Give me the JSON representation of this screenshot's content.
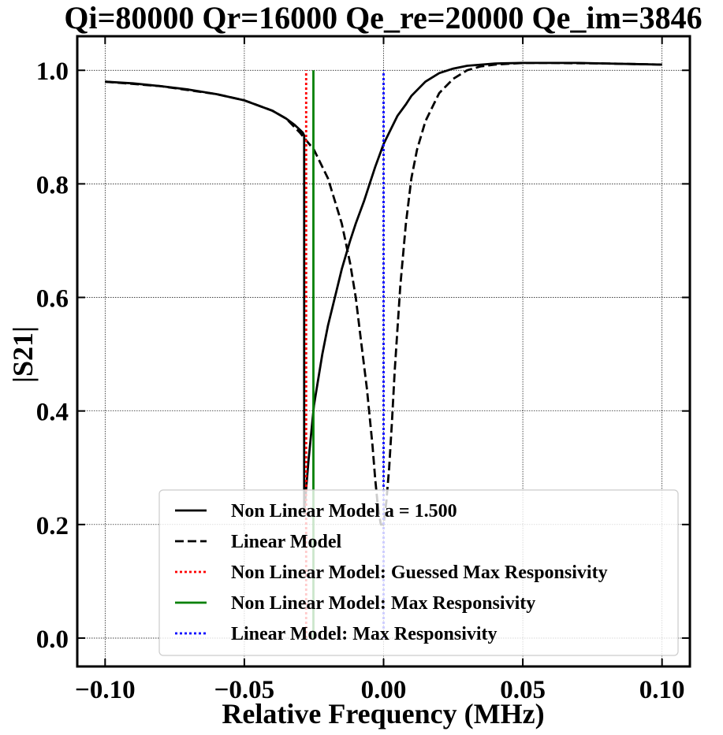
{
  "chart_data": {
    "type": "line",
    "title": "Qi=80000 Qr=16000 Qe_re=20000 Qe_im=3846",
    "xlabel": "Relative Frequency (MHz)",
    "ylabel": "|S21|",
    "xlim": [
      -0.11,
      0.11
    ],
    "ylim": [
      -0.05,
      1.06
    ],
    "xticks": [
      -0.1,
      -0.05,
      0.0,
      0.05,
      0.1
    ],
    "xtick_labels": [
      "−0.10",
      "−0.05",
      "0.00",
      "0.05",
      "0.10"
    ],
    "yticks": [
      0.0,
      0.2,
      0.4,
      0.6,
      0.8,
      1.0
    ],
    "ytick_labels": [
      "0.0",
      "0.2",
      "0.4",
      "0.6",
      "0.8",
      "1.0"
    ],
    "grid": true,
    "legend_position": "lower-right",
    "series": [
      {
        "name": "Non Linear Model a = 1.500",
        "color": "#000000",
        "style": "solid",
        "x": [
          -0.1,
          -0.09,
          -0.08,
          -0.07,
          -0.06,
          -0.05,
          -0.04,
          -0.035,
          -0.032,
          -0.03,
          -0.029,
          -0.0285,
          -0.0285,
          -0.027,
          -0.025,
          -0.022,
          -0.02,
          -0.017,
          -0.015,
          -0.012,
          -0.01,
          -0.007,
          -0.005,
          -0.003,
          0.0,
          0.003,
          0.005,
          0.008,
          0.01,
          0.015,
          0.02,
          0.025,
          0.03,
          0.04,
          0.05,
          0.06,
          0.07,
          0.08,
          0.09,
          0.1
        ],
        "y": [
          0.98,
          0.977,
          0.972,
          0.966,
          0.958,
          0.947,
          0.929,
          0.915,
          0.904,
          0.895,
          0.89,
          0.885,
          0.22,
          0.31,
          0.41,
          0.5,
          0.55,
          0.61,
          0.65,
          0.7,
          0.73,
          0.77,
          0.8,
          0.83,
          0.87,
          0.9,
          0.92,
          0.94,
          0.955,
          0.98,
          0.995,
          1.003,
          1.008,
          1.012,
          1.013,
          1.013,
          1.013,
          1.012,
          1.011,
          1.01
        ]
      },
      {
        "name": "Linear Model",
        "color": "#000000",
        "style": "dashed",
        "x": [
          -0.1,
          -0.08,
          -0.06,
          -0.05,
          -0.04,
          -0.035,
          -0.03,
          -0.025,
          -0.02,
          -0.015,
          -0.012,
          -0.01,
          -0.008,
          -0.006,
          -0.004,
          -0.003,
          -0.002,
          -0.001,
          0.0,
          0.001,
          0.002,
          0.003,
          0.004,
          0.006,
          0.008,
          0.01,
          0.012,
          0.015,
          0.02,
          0.025,
          0.03,
          0.035,
          0.04,
          0.05,
          0.06,
          0.08,
          0.1
        ],
        "y": [
          0.98,
          0.972,
          0.958,
          0.947,
          0.929,
          0.915,
          0.89,
          0.86,
          0.81,
          0.73,
          0.66,
          0.6,
          0.52,
          0.44,
          0.34,
          0.28,
          0.23,
          0.2,
          0.2,
          0.24,
          0.3,
          0.38,
          0.47,
          0.62,
          0.73,
          0.81,
          0.86,
          0.91,
          0.96,
          0.985,
          1.0,
          1.007,
          1.01,
          1.013,
          1.013,
          1.012,
          1.01
        ]
      },
      {
        "name": "Non Linear Model: Guessed Max Responsivity",
        "color": "#ff0000",
        "style": "dotted",
        "x": [
          -0.0278,
          -0.0278
        ],
        "y": [
          0.0,
          1.0
        ]
      },
      {
        "name": "Non Linear Model: Max Responsivity",
        "color": "#008000",
        "style": "solid",
        "x": [
          -0.0252,
          -0.0252
        ],
        "y": [
          0.0,
          1.0
        ]
      },
      {
        "name": "Linear Model: Max Responsivity",
        "color": "#0000ff",
        "style": "dotted",
        "x": [
          0.0,
          0.0
        ],
        "y": [
          0.0,
          1.0
        ]
      }
    ]
  }
}
